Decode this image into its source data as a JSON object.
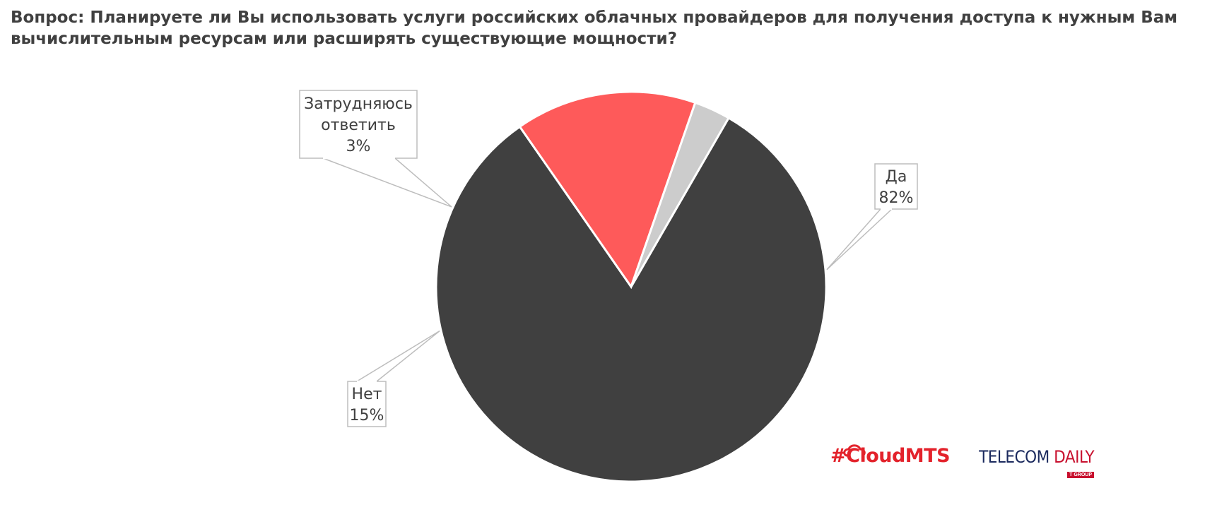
{
  "chart_data": {
    "type": "pie",
    "title": "Вопрос: Планируете ли Вы использовать услуги российских облачных провайдеров для получения доступа к нужным Вам вычислительным ресурсам или расширять существующие мощности?",
    "slices": [
      {
        "label_lines": [
          "Да"
        ],
        "value": 82,
        "value_label": "82%",
        "color": "#404040"
      },
      {
        "label_lines": [
          "Нет"
        ],
        "value": 15,
        "value_label": "15%",
        "color": "#fe5a5a"
      },
      {
        "label_lines": [
          "Затрудняюсь",
          "ответить"
        ],
        "value": 3,
        "value_label": "3%",
        "color": "#cccccc"
      }
    ],
    "legend": "none",
    "labels": "callouts"
  },
  "logos": {
    "cloudmts": "#CloudMTS",
    "telecom": "TELECOM",
    "daily": "DAILY",
    "telecom_sub": "T GROUP"
  },
  "colors": {
    "callout_border": "#bdbdbd",
    "text": "#404040"
  }
}
